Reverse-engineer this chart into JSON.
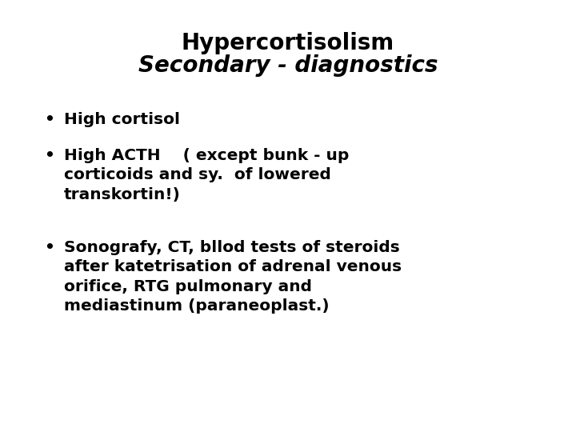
{
  "title_line1": "Hypercortisolism",
  "title_line2": "Secondary - diagnostics",
  "bullet1": "High cortisol",
  "bullet2_line1": "High ACTH    ( except bunk - up",
  "bullet2_line2": "corticoids and sy.  of lowered",
  "bullet2_line3": "transkortin!)",
  "bullet3_line1": "Sonografy, CT, bllod tests of steroids",
  "bullet3_line2": "after katetrisation of adrenal venous",
  "bullet3_line3": "orifice, RTG pulmonary and",
  "bullet3_line4": "mediastinum (paraneoplast.)",
  "bg_color": "#ffffff",
  "text_color": "#000000",
  "title_fontsize": 20,
  "body_fontsize": 14.5,
  "bullet_char": "•"
}
